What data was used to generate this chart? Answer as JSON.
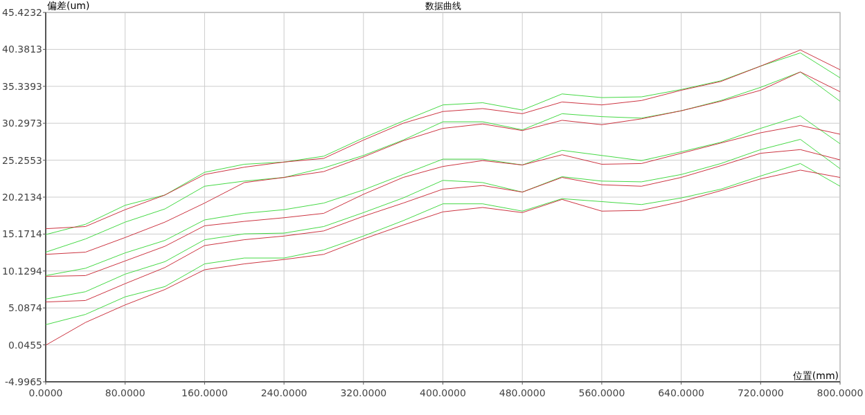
{
  "chart_data": {
    "type": "line",
    "title": "数据曲线",
    "xlabel": "位置(mm)",
    "ylabel": "偏差(um)",
    "grid": true,
    "xlim": [
      0,
      800
    ],
    "ylim": [
      -4.9965,
      45.4232
    ],
    "xticks": [
      {
        "value": 0,
        "label": "0.0000"
      },
      {
        "value": 80,
        "label": "80.0000"
      },
      {
        "value": 160,
        "label": "160.0000"
      },
      {
        "value": 240,
        "label": "240.0000"
      },
      {
        "value": 320,
        "label": "320.0000"
      },
      {
        "value": 400,
        "label": "400.0000"
      },
      {
        "value": 480,
        "label": "480.0000"
      },
      {
        "value": 560,
        "label": "560.0000"
      },
      {
        "value": 640,
        "label": "640.0000"
      },
      {
        "value": 720,
        "label": "720.0000"
      },
      {
        "value": 800,
        "label": "800.0000"
      }
    ],
    "yticks": [
      -4.9965,
      0.0455,
      5.0874,
      10.1294,
      15.1714,
      20.2134,
      25.2553,
      30.2973,
      35.3393,
      40.3813,
      45.4232
    ],
    "x": [
      0,
      40,
      80,
      120,
      160,
      200,
      240,
      280,
      320,
      360,
      400,
      440,
      480,
      520,
      560,
      600,
      640,
      680,
      720,
      760,
      800
    ],
    "series": [
      {
        "color": "#44d944",
        "values": [
          15.1,
          16.5,
          19.1,
          20.5,
          23.6,
          24.7,
          25.0,
          25.8,
          28.3,
          30.6,
          32.8,
          33.1,
          32.1,
          34.3,
          33.8,
          33.9,
          34.9,
          36.1,
          38.1,
          39.9,
          36.5
        ]
      },
      {
        "color": "#cc3340",
        "values": [
          15.9,
          16.2,
          18.5,
          20.5,
          23.3,
          24.3,
          25.0,
          25.5,
          28.0,
          30.3,
          31.9,
          32.3,
          31.6,
          33.2,
          32.8,
          33.4,
          34.8,
          36.0,
          38.1,
          40.3,
          37.6
        ]
      },
      {
        "color": "#44d944",
        "values": [
          12.7,
          14.5,
          16.8,
          18.6,
          21.7,
          22.4,
          22.9,
          24.2,
          25.9,
          28.0,
          30.5,
          30.5,
          29.4,
          31.6,
          31.2,
          31.0,
          32.0,
          33.4,
          35.2,
          37.3,
          33.3
        ]
      },
      {
        "color": "#cc3340",
        "values": [
          12.4,
          12.7,
          14.7,
          16.8,
          19.4,
          22.2,
          22.9,
          23.7,
          25.7,
          27.9,
          29.6,
          30.2,
          29.3,
          30.7,
          30.1,
          30.9,
          32.0,
          33.3,
          34.8,
          37.3,
          34.6
        ]
      },
      {
        "color": "#44d944",
        "values": [
          9.5,
          10.5,
          12.6,
          14.3,
          17.1,
          18.0,
          18.5,
          19.4,
          21.2,
          23.3,
          25.4,
          25.4,
          24.6,
          26.6,
          25.9,
          25.2,
          26.4,
          27.7,
          29.6,
          31.3,
          27.5
        ]
      },
      {
        "color": "#cc3340",
        "values": [
          9.4,
          9.5,
          11.5,
          13.5,
          16.3,
          16.9,
          17.4,
          18.0,
          20.6,
          22.9,
          24.4,
          25.2,
          24.6,
          26.0,
          24.7,
          24.8,
          26.2,
          27.6,
          29.0,
          30.0,
          28.8
        ]
      },
      {
        "color": "#44d944",
        "values": [
          6.3,
          7.3,
          9.7,
          11.4,
          14.4,
          15.2,
          15.3,
          16.2,
          18.1,
          20.1,
          22.5,
          22.2,
          20.9,
          23.0,
          22.4,
          22.3,
          23.3,
          24.8,
          26.7,
          28.1,
          24.1
        ]
      },
      {
        "color": "#cc3340",
        "values": [
          5.9,
          6.1,
          8.4,
          10.6,
          13.6,
          14.4,
          14.9,
          15.6,
          17.6,
          19.4,
          21.3,
          21.8,
          20.9,
          22.9,
          21.9,
          21.7,
          22.9,
          24.5,
          26.2,
          26.7,
          25.3
        ]
      },
      {
        "color": "#44d944",
        "values": [
          2.8,
          4.2,
          6.6,
          8.0,
          11.1,
          11.9,
          11.9,
          13.0,
          14.9,
          17.0,
          19.3,
          19.3,
          18.3,
          20.0,
          19.6,
          19.2,
          20.1,
          21.3,
          23.1,
          24.8,
          21.7
        ]
      },
      {
        "color": "#cc3340",
        "values": [
          0.0,
          3.1,
          5.5,
          7.6,
          10.3,
          11.1,
          11.7,
          12.4,
          14.5,
          16.4,
          18.2,
          18.8,
          18.1,
          19.9,
          18.3,
          18.4,
          19.6,
          21.1,
          22.7,
          23.9,
          22.9
        ]
      }
    ]
  }
}
